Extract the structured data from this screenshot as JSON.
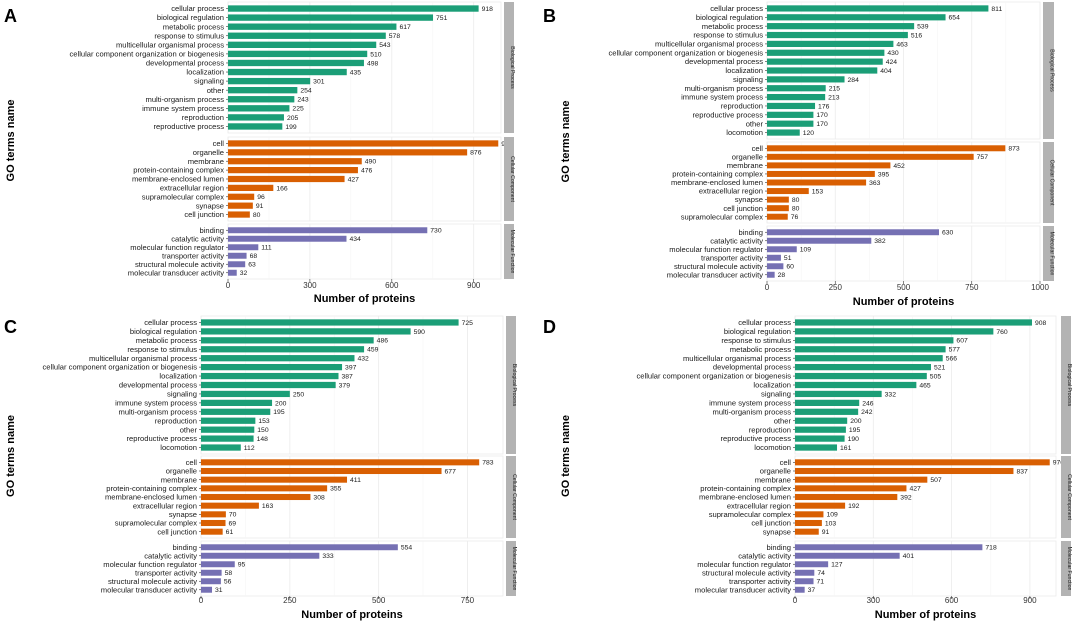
{
  "colors": {
    "biological": "#1b9e77",
    "cellular": "#d95f02",
    "molecular": "#7570b3",
    "strip": "#b3b3b3",
    "grid": "#ebebeb",
    "gridMinor": "#f5f5f5",
    "axis": "#333333"
  },
  "chart_data": [
    {
      "type": "bar",
      "orientation": "horizontal",
      "label": "A",
      "xlabel": "Number of proteins",
      "ylabel": "GO terms name",
      "xlim": [
        0,
        1000
      ],
      "xticks": [
        0,
        300,
        600,
        900
      ],
      "facets": [
        {
          "name": "Biological Process",
          "color_key": "biological",
          "categories": [
            "cellular process",
            "biological regulation",
            "metabolic process",
            "response to stimulus",
            "multicellular organismal process",
            "cellular component organization or biogenesis",
            "developmental process",
            "localization",
            "signaling",
            "other",
            "multi-organism process",
            "immune system process",
            "reproduction",
            "reproductive process"
          ],
          "values": [
            918,
            751,
            617,
            578,
            543,
            510,
            498,
            435,
            301,
            254,
            243,
            225,
            205,
            199
          ]
        },
        {
          "name": "Cellular Component",
          "color_key": "cellular",
          "categories": [
            "cell",
            "organelle",
            "membrane",
            "protein-containing complex",
            "membrane-enclosed lumen",
            "extracellular region",
            "supramolecular complex",
            "synapse",
            "cell junction"
          ],
          "values": [
            990,
            876,
            490,
            476,
            427,
            166,
            96,
            91,
            80
          ]
        },
        {
          "name": "Molecular Function",
          "color_key": "molecular",
          "categories": [
            "binding",
            "catalytic activity",
            "molecular function regulator",
            "transporter activity",
            "structural molecule activity",
            "molecular transducer activity"
          ],
          "values": [
            730,
            434,
            111,
            68,
            63,
            32
          ]
        }
      ]
    },
    {
      "type": "bar",
      "orientation": "horizontal",
      "label": "B",
      "xlabel": "Number of proteins",
      "ylabel": "GO terms name",
      "xlim": [
        0,
        1000
      ],
      "xticks": [
        0,
        250,
        500,
        750,
        1000
      ],
      "facets": [
        {
          "name": "Biological Process",
          "color_key": "biological",
          "categories": [
            "cellular process",
            "biological regulation",
            "metabolic process",
            "response to stimulus",
            "multicellular organismal process",
            "cellular component organization or biogenesis",
            "developmental process",
            "localization",
            "signaling",
            "multi-organism process",
            "immune system process",
            "reproduction",
            "reproductive process",
            "other",
            "locomotion"
          ],
          "values": [
            811,
            654,
            539,
            516,
            463,
            430,
            424,
            404,
            284,
            215,
            213,
            176,
            170,
            170,
            120
          ]
        },
        {
          "name": "Cellular Component",
          "color_key": "cellular",
          "categories": [
            "cell",
            "organelle",
            "membrane",
            "protein-containing complex",
            "membrane-enclosed lumen",
            "extracellular region",
            "synapse",
            "cell junction",
            "supramolecular complex"
          ],
          "values": [
            873,
            757,
            452,
            395,
            363,
            153,
            80,
            80,
            76
          ]
        },
        {
          "name": "Molecular Function",
          "color_key": "molecular",
          "categories": [
            "binding",
            "catalytic activity",
            "molecular function regulator",
            "transporter activity",
            "structural molecule activity",
            "molecular transducer activity"
          ],
          "values": [
            630,
            382,
            109,
            51,
            60,
            28
          ]
        }
      ]
    },
    {
      "type": "bar",
      "orientation": "horizontal",
      "label": "C",
      "xlabel": "Number of proteins",
      "ylabel": "GO terms name",
      "xlim": [
        0,
        850
      ],
      "xticks": [
        0,
        250,
        500,
        750
      ],
      "facets": [
        {
          "name": "Biological Process",
          "color_key": "biological",
          "categories": [
            "cellular process",
            "biological regulation",
            "metabolic process",
            "response to stimulus",
            "multicellular organismal process",
            "cellular component organization or biogenesis",
            "localization",
            "developmental process",
            "signaling",
            "immune system process",
            "multi-organism process",
            "reproduction",
            "other",
            "reproductive process",
            "locomotion"
          ],
          "values": [
            725,
            590,
            486,
            459,
            432,
            397,
            387,
            379,
            250,
            200,
            195,
            153,
            150,
            148,
            112
          ]
        },
        {
          "name": "Cellular Component",
          "color_key": "cellular",
          "categories": [
            "cell",
            "organelle",
            "membrane",
            "protein-containing complex",
            "membrane-enclosed lumen",
            "extracellular region",
            "synapse",
            "supramolecular complex",
            "cell junction"
          ],
          "values": [
            783,
            677,
            411,
            355,
            308,
            163,
            70,
            69,
            61
          ]
        },
        {
          "name": "Molecular Function",
          "color_key": "molecular",
          "categories": [
            "binding",
            "catalytic activity",
            "molecular function regulator",
            "transporter activity",
            "structural molecule activity",
            "molecular transducer activity"
          ],
          "values": [
            554,
            333,
            95,
            58,
            56,
            31
          ]
        }
      ]
    },
    {
      "type": "bar",
      "orientation": "horizontal",
      "label": "D",
      "xlabel": "Number of proteins",
      "ylabel": "GO terms name",
      "xlim": [
        0,
        1000
      ],
      "xticks": [
        0,
        300,
        600,
        900
      ],
      "facets": [
        {
          "name": "Biological Process",
          "color_key": "biological",
          "categories": [
            "cellular process",
            "biological regulation",
            "response to stimulus",
            "metabolic process",
            "multicellular organismal process",
            "developmental process",
            "cellular component organization or biogenesis",
            "localization",
            "signaling",
            "immune system process",
            "multi-organism process",
            "other",
            "reproduction",
            "reproductive process",
            "locomotion"
          ],
          "values": [
            908,
            760,
            607,
            577,
            566,
            521,
            505,
            465,
            332,
            246,
            242,
            200,
            195,
            190,
            161
          ]
        },
        {
          "name": "Cellular Component",
          "color_key": "cellular",
          "categories": [
            "cell",
            "organelle",
            "membrane",
            "protein-containing complex",
            "membrane-enclosed lumen",
            "extracellular region",
            "supramolecular complex",
            "cell junction",
            "synapse"
          ],
          "values": [
            976,
            837,
            507,
            427,
            392,
            192,
            109,
            103,
            91
          ]
        },
        {
          "name": "Molecular Function",
          "color_key": "molecular",
          "categories": [
            "binding",
            "catalytic activity",
            "molecular function regulator",
            "structural molecule activity",
            "transporter activity",
            "molecular transducer activity"
          ],
          "values": [
            718,
            401,
            127,
            74,
            71,
            37
          ]
        }
      ]
    }
  ]
}
